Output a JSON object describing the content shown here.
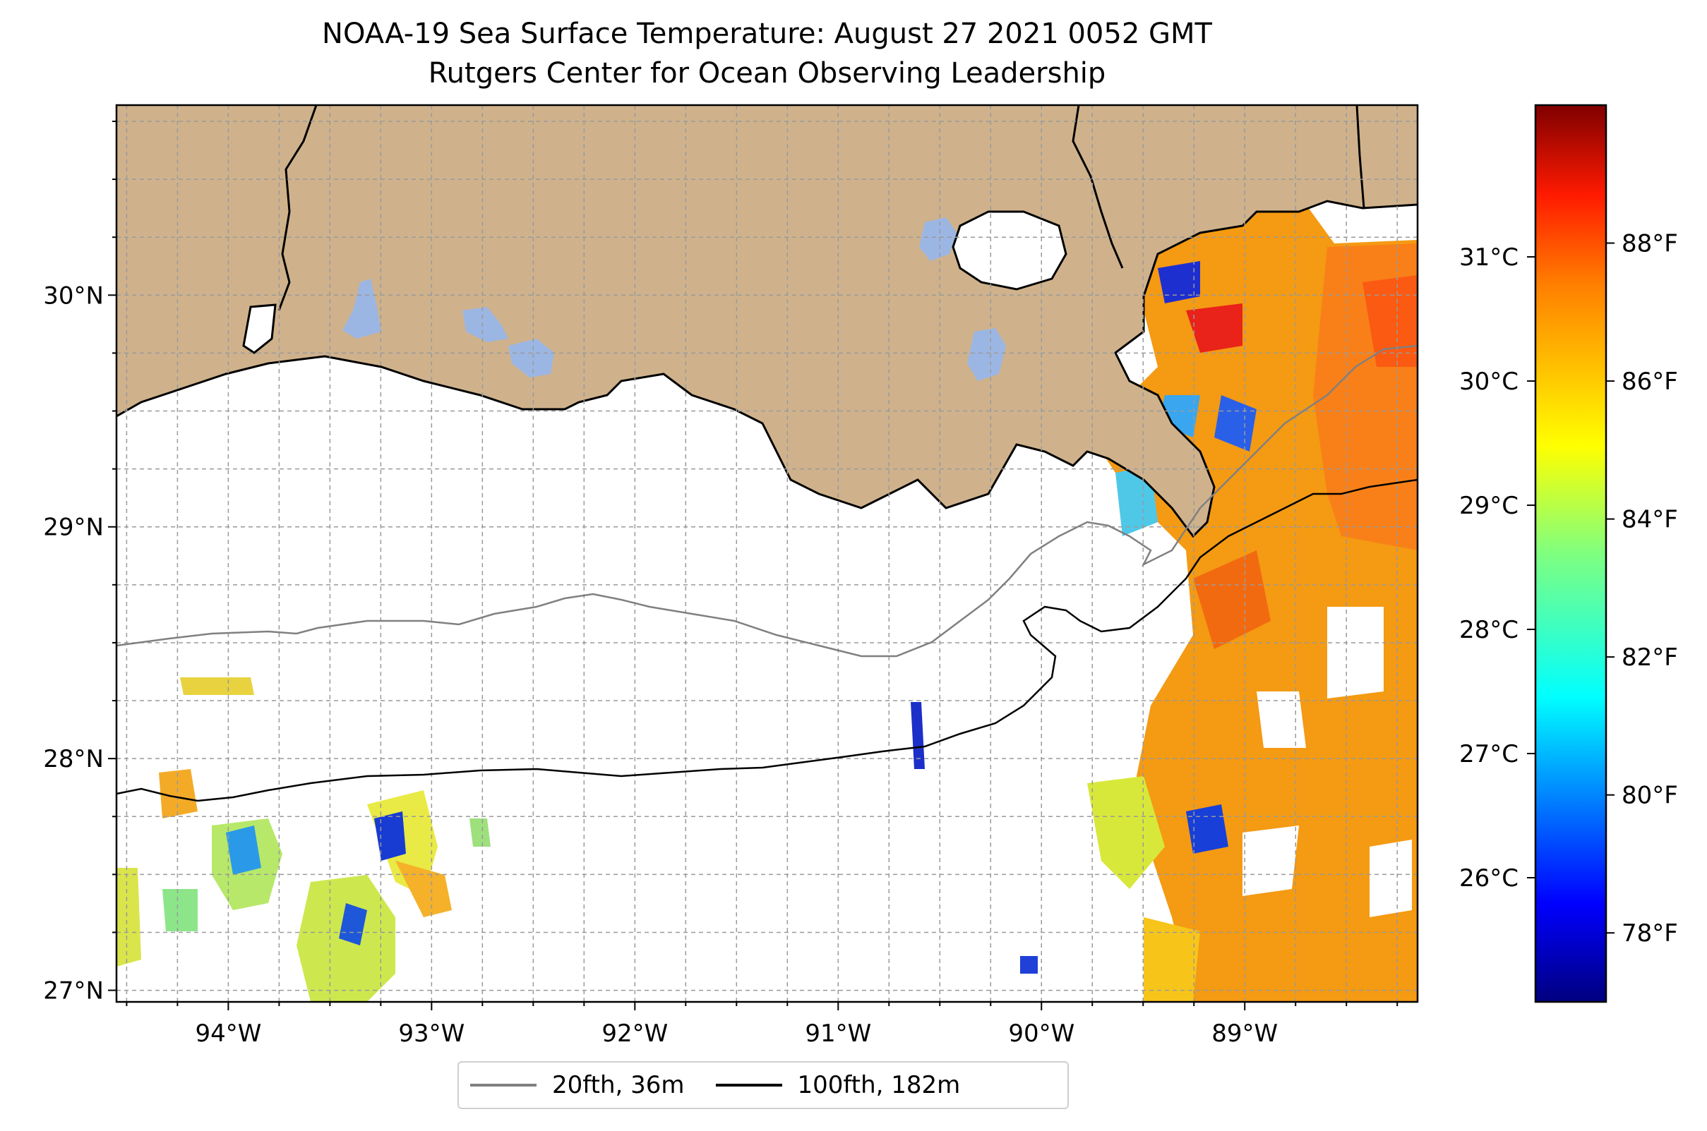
{
  "title": "NOAA-19 Sea Surface Temperature: August 27 2021 0052 GMT",
  "subtitle": "Rutgers Center for Ocean Observing Leadership",
  "map": {
    "lon_range": [
      -94.55,
      -88.15
    ],
    "lat_range": [
      26.95,
      30.82
    ],
    "lon_ticks": [
      "94°W",
      "93°W",
      "92°W",
      "91°W",
      "90°W",
      "89°W"
    ],
    "lon_tick_values": [
      -94,
      -93,
      -92,
      -91,
      -90,
      -89
    ],
    "lat_ticks": [
      "27°N",
      "28°N",
      "29°N",
      "30°N"
    ],
    "lat_tick_values": [
      27,
      28,
      29,
      30
    ],
    "land_color": "#CFB28C",
    "water_body_color": "#9CB6E3",
    "gridlines": true
  },
  "colorbar": {
    "colormap": "jet",
    "celsius_ticks": [
      "26°C",
      "27°C",
      "28°C",
      "29°C",
      "30°C",
      "31°C"
    ],
    "celsius_values": [
      26,
      27,
      28,
      29,
      30,
      31
    ],
    "fahrenheit_ticks": [
      "78°F",
      "80°F",
      "82°F",
      "84°F",
      "86°F",
      "88°F"
    ],
    "fahrenheit_values": [
      78,
      80,
      82,
      84,
      86,
      88
    ],
    "range_f": [
      77,
      90
    ]
  },
  "legend": {
    "items": [
      {
        "label": "20fth, 36m",
        "color": "#808080"
      },
      {
        "label": "100fth, 182m",
        "color": "#000000"
      }
    ],
    "placement": "bottom-center"
  }
}
